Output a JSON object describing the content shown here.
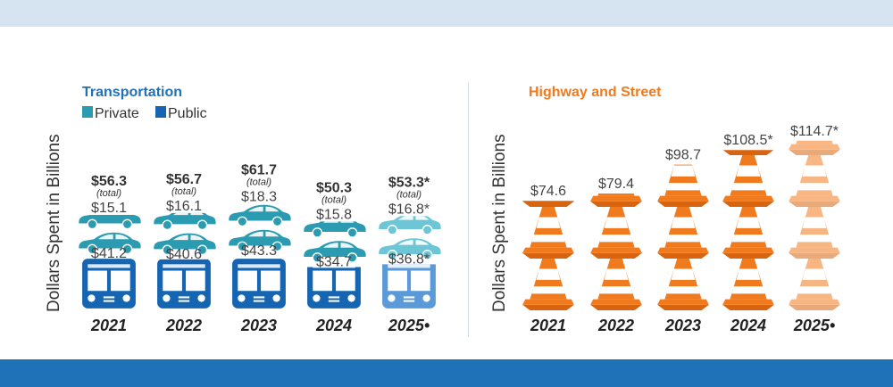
{
  "colors": {
    "private": "#2a9bb1",
    "public": "#1565b3",
    "projected_private": "#6cc6d6",
    "projected_public": "#5a9ad8",
    "cone_orange": "#f07b1f",
    "cone_stripe": "#ffffff",
    "title_blue": "#1f72b8",
    "title_orange": "#f07b1f"
  },
  "legend": {
    "private": "Private",
    "public": "Public"
  },
  "chart_data": [
    {
      "type": "bar",
      "title": "Transportation",
      "ylabel": "Dollars Spent in Billions",
      "categories": [
        "2021",
        "2022",
        "2023",
        "2024",
        "2025•"
      ],
      "totals_label": [
        "$56.3",
        "$56.7",
        "$61.7",
        "$50.3",
        "$53.3*"
      ],
      "total_note": "(total)",
      "totals": [
        56.3,
        56.7,
        61.7,
        50.3,
        53.3
      ],
      "series": [
        {
          "name": "Private",
          "values": [
            15.1,
            16.1,
            18.3,
            15.8,
            16.8
          ],
          "labels": [
            "$15.1",
            "$16.1",
            "$18.3",
            "$15.8",
            "$16.8*"
          ]
        },
        {
          "name": "Public",
          "values": [
            41.2,
            40.6,
            43.3,
            34.7,
            36.8
          ],
          "labels": [
            "$41.2",
            "$40.6",
            "$43.3",
            "$34.7",
            "$36.8*"
          ]
        }
      ],
      "icons": [
        "car-icon",
        "bus-icon"
      ]
    },
    {
      "type": "bar",
      "title": "Highway and Street",
      "ylabel": "Dollars Spent in Billions",
      "categories": [
        "2021",
        "2022",
        "2023",
        "2024",
        "2025•"
      ],
      "values": [
        74.6,
        79.4,
        98.7,
        108.5,
        114.7
      ],
      "labels": [
        "$74.6",
        "$79.4",
        "$98.7",
        "$108.5*",
        "$114.7*"
      ],
      "icons": [
        "traffic-cone-icon"
      ]
    }
  ]
}
